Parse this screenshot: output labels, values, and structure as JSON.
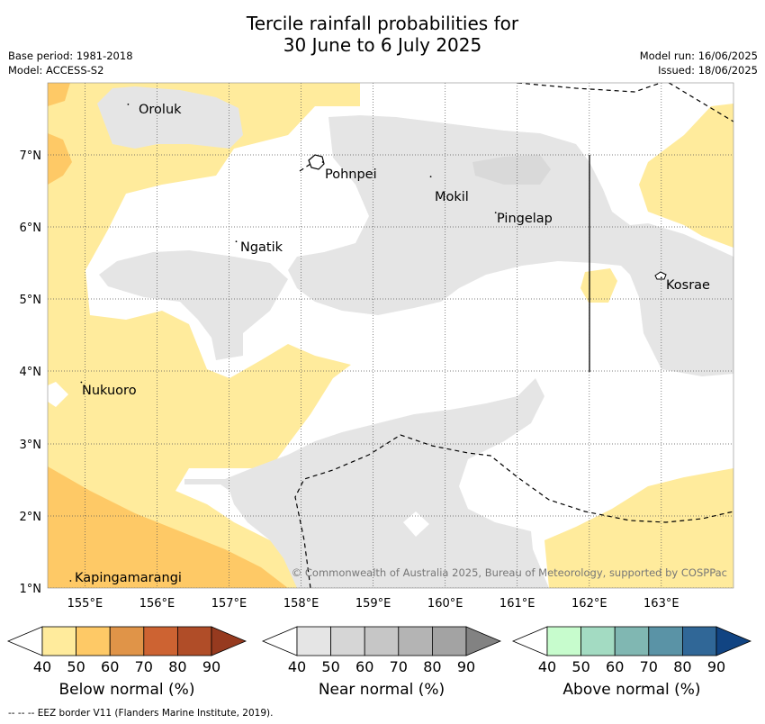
{
  "title_line1": "Tercile rainfall probabilities for",
  "title_line2": "30 June to 6 July 2025",
  "base_period": "Base period: 1981-2018",
  "model": "Model: ACCESS-S2",
  "model_run": "Model run: 16/06/2025",
  "issued": "Issued: 18/06/2025",
  "map": {
    "lon_labels": [
      "155°E",
      "156°E",
      "157°E",
      "158°E",
      "159°E",
      "160°E",
      "161°E",
      "162°E",
      "163°E"
    ],
    "lat_labels": [
      "7°N",
      "6°N",
      "5°N",
      "4°N",
      "3°N",
      "2°N",
      "1°N"
    ],
    "places": [
      {
        "name": "Oroluk",
        "lon": 155.6,
        "lat": 7.7
      },
      {
        "name": "Pohnpei",
        "lon": 158.3,
        "lat": 6.9
      },
      {
        "name": "Mokil",
        "lon": 159.8,
        "lat": 6.7
      },
      {
        "name": "Pingelap",
        "lon": 160.7,
        "lat": 6.2
      },
      {
        "name": "Ngatik",
        "lon": 157.1,
        "lat": 5.8
      },
      {
        "name": "Kosrae",
        "lon": 163.0,
        "lat": 5.3
      },
      {
        "name": "Nukuoro",
        "lon": 154.95,
        "lat": 3.85
      },
      {
        "name": "Kapingamarangi",
        "lon": 154.8,
        "lat": 1.1
      }
    ],
    "copyright": "© Commonwealth of Australia 2025, Bureau of Meteorology, supported by COSPPac"
  },
  "colorbars": [
    {
      "title": "Below normal (%)",
      "ticks": [
        "40",
        "50",
        "60",
        "70",
        "80",
        "90"
      ],
      "colors": [
        "#ffffff",
        "#ffeb9c",
        "#fec966",
        "#e09448",
        "#cd6332",
        "#b04d28",
        "#963a1f"
      ]
    },
    {
      "title": "Near normal (%)",
      "ticks": [
        "40",
        "50",
        "60",
        "70",
        "80",
        "90"
      ],
      "colors": [
        "#ffffff",
        "#e5e5e5",
        "#d6d6d6",
        "#c6c6c6",
        "#b4b4b4",
        "#a3a3a3",
        "#828282"
      ]
    },
    {
      "title": "Above normal (%)",
      "ticks": [
        "40",
        "50",
        "60",
        "70",
        "80",
        "90"
      ],
      "colors": [
        "#ffffff",
        "#c7fccd",
        "#a3dbc2",
        "#80b7b2",
        "#5a93a6",
        "#306797",
        "#114482"
      ]
    }
  ],
  "eez_note": "--  --  -- EEZ border V11 (Flanders Marine Institute, 2019)."
}
